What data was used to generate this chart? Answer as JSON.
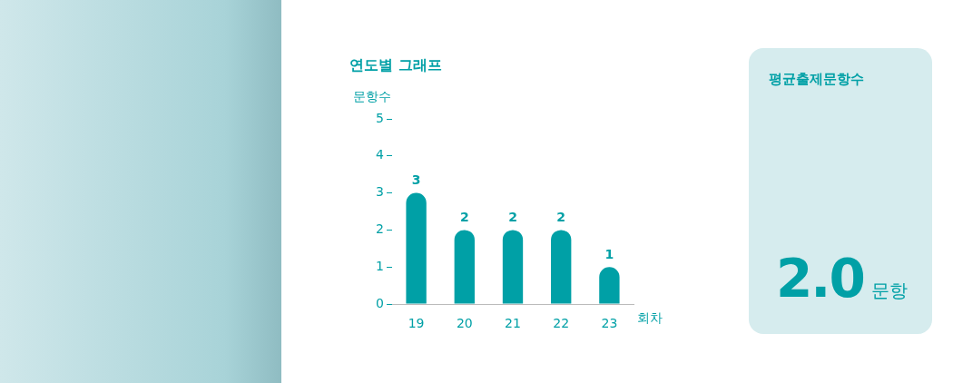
{
  "chart_data": [
    {
      "type": "bar",
      "title": "연도별 그래프",
      "ylabel": "문항수",
      "xlabel": "회차",
      "categories": [
        "19",
        "20",
        "21",
        "22",
        "23"
      ],
      "values": [
        3,
        2,
        2,
        2,
        1
      ],
      "color": "#00a0a6",
      "ylim": [
        0,
        5
      ],
      "yticks": [
        0,
        1,
        2,
        3,
        4,
        5
      ],
      "grid": false,
      "legend": false,
      "data_labels": true
    },
    {
      "type": "other",
      "title": "평균출제문항수",
      "annotations": [
        "2.0",
        "문항"
      ]
    }
  ]
}
